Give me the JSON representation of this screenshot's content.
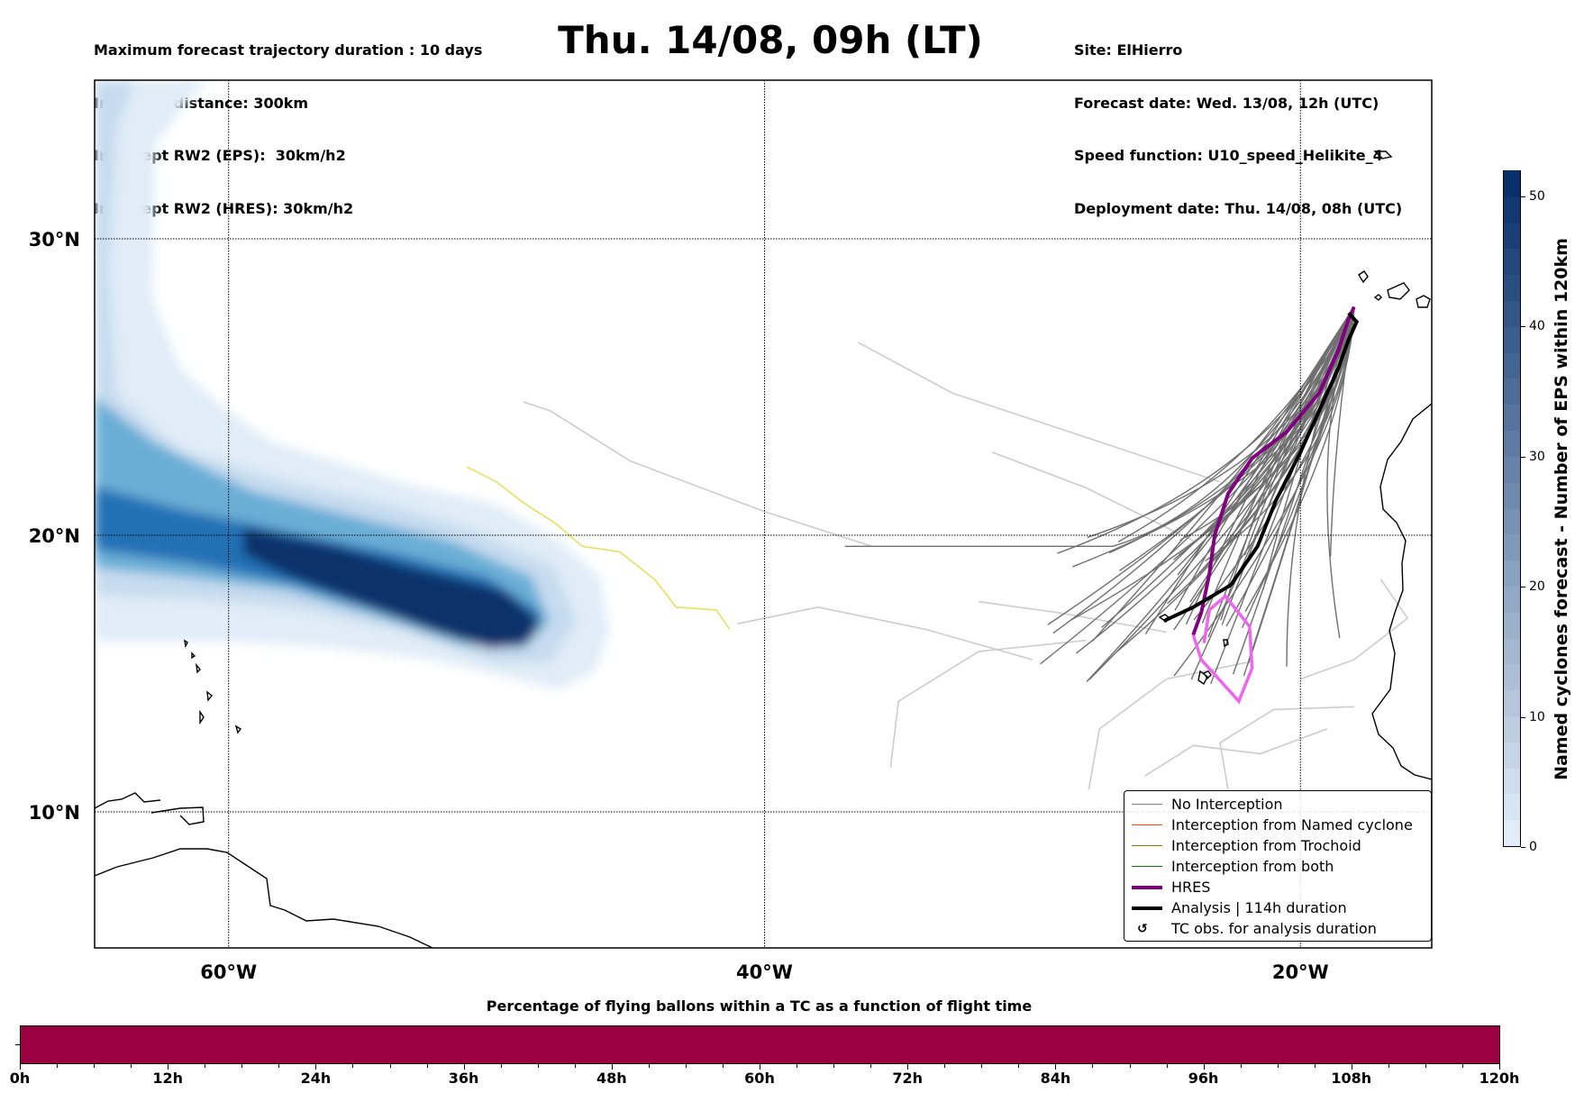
{
  "header": {
    "left_lines": [
      "Maximum forecast trajectory duration : 10 days",
      "Intercept distance: 300km",
      "Intercept RW2 (EPS):  30km/h2",
      "Intercept RW2 (HRES): 30km/h2"
    ],
    "title": "Thu. 14/08, 09h (LT)",
    "right_lines": [
      "Site: ElHierro",
      "Forecast date: Wed. 13/08, 12h (UTC)",
      "Speed function: U10_speed_Helikite_4",
      "Deployment date: Thu. 14/08, 08h (UTC)"
    ]
  },
  "map": {
    "lat_labels": [
      "30°N",
      "20°N",
      "10°N"
    ],
    "lon_labels": [
      "60°W",
      "40°W",
      "20°W"
    ],
    "gridlines": {
      "lats": [
        30,
        20,
        10
      ],
      "lons": [
        -60,
        -40,
        -20
      ]
    },
    "extent": {
      "lon_min": -65,
      "lon_max": -15.1,
      "lat_min": 5.2,
      "lat_max": 35.6
    },
    "site": {
      "name": "ElHierro",
      "lon": -18.0,
      "lat": 27.7
    },
    "colors": {
      "no_interception": "#808080",
      "named_cyclone": "#ff4500",
      "trochoid": "#808000",
      "both": "#008000",
      "hres": "#800080",
      "analysis": "#000000",
      "tc_obs": "#ee66ee",
      "trochoid_track": "#e8e060",
      "faded_track": "#cccccc"
    },
    "hres_track": [
      [
        -18.0,
        27.7
      ],
      [
        -18.2,
        27.3
      ],
      [
        -18.6,
        26.2
      ],
      [
        -19.3,
        24.8
      ],
      [
        -20.5,
        23.5
      ],
      [
        -21.8,
        22.6
      ],
      [
        -22.7,
        21.4
      ],
      [
        -23.2,
        20.0
      ],
      [
        -23.4,
        18.6
      ],
      [
        -23.7,
        17.2
      ],
      [
        -24.0,
        16.4
      ]
    ],
    "analysis_track": [
      [
        -18.2,
        27.5
      ],
      [
        -17.9,
        27.2
      ],
      [
        -18.2,
        26.6
      ],
      [
        -18.6,
        25.6
      ],
      [
        -19.2,
        24.4
      ],
      [
        -20.0,
        22.8
      ],
      [
        -20.9,
        21.2
      ],
      [
        -21.6,
        19.6
      ],
      [
        -22.6,
        18.2
      ],
      [
        -24.0,
        17.4
      ],
      [
        -25.1,
        16.9
      ]
    ],
    "tc_obs_track": [
      [
        -23.6,
        16.1
      ],
      [
        -23.4,
        17.3
      ],
      [
        -22.8,
        17.8
      ],
      [
        -21.9,
        16.7
      ],
      [
        -21.8,
        15.2
      ],
      [
        -22.3,
        14.0
      ],
      [
        -23.7,
        15.5
      ],
      [
        -24.0,
        16.4
      ]
    ],
    "trochoid_track": [
      [
        -51.1,
        22.3
      ],
      [
        -50.0,
        21.8
      ],
      [
        -49.0,
        21.1
      ],
      [
        -47.8,
        20.4
      ],
      [
        -46.8,
        19.6
      ],
      [
        -45.4,
        19.4
      ],
      [
        -44.1,
        18.4
      ],
      [
        -43.3,
        17.4
      ],
      [
        -41.8,
        17.3
      ],
      [
        -41.3,
        16.6
      ]
    ]
  },
  "colorbar": {
    "title": "Named cyclones forecast - Number of EPS within 120km",
    "min": 0,
    "max": 52,
    "ticks": [
      0,
      10,
      20,
      30,
      40,
      50
    ],
    "color_low": "#e0ecf7",
    "color_high": "#08306b"
  },
  "legend": {
    "items": [
      {
        "label": "No Interception",
        "kind": "line",
        "color": "#808080",
        "width": 1.5
      },
      {
        "label": "Interception from Named cyclone",
        "kind": "line",
        "color": "#ff4500",
        "width": 1.5
      },
      {
        "label": "Interception from Trochoid",
        "kind": "line",
        "color": "#808000",
        "width": 1.5
      },
      {
        "label": "Interception from both",
        "kind": "line",
        "color": "#008000",
        "width": 1.5
      },
      {
        "label": "HRES",
        "kind": "line",
        "color": "#800080",
        "width": 4
      },
      {
        "label": "Analysis | 114h duration",
        "kind": "line",
        "color": "#000000",
        "width": 4
      },
      {
        "label": "TC obs. for analysis duration",
        "kind": "glyph",
        "glyph": "↺"
      }
    ]
  },
  "time_bar": {
    "title": "Percentage of flying ballons within a TC as a function of flight time",
    "range_hours": [
      0,
      120
    ],
    "tick_labels": [
      "0h",
      "12h",
      "24h",
      "36h",
      "48h",
      "60h",
      "72h",
      "84h",
      "96h",
      "108h",
      "120h"
    ],
    "minor_step_hours": 3,
    "segments": [
      {
        "from_h": 0,
        "to_h": 120,
        "color": "#9b0040"
      }
    ]
  }
}
